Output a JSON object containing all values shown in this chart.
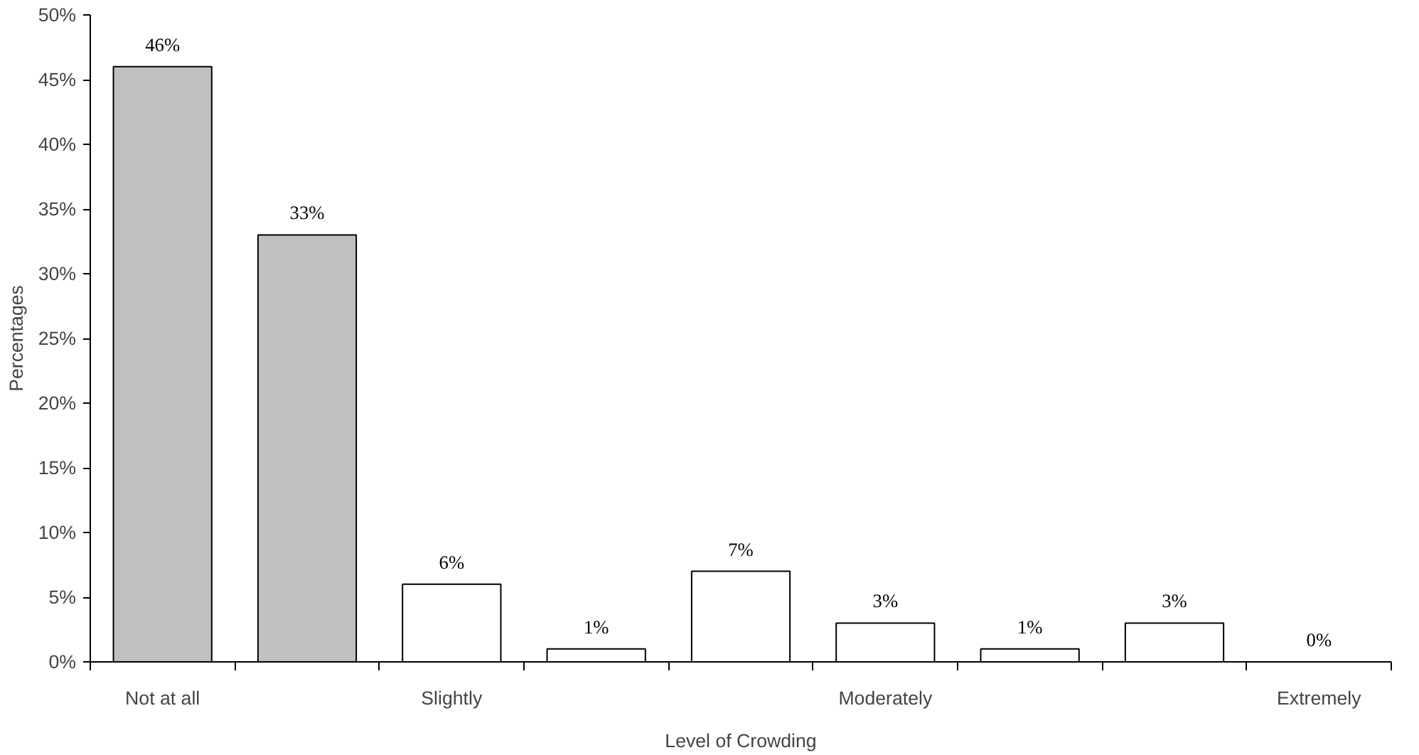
{
  "chart_data": {
    "type": "bar",
    "xlabel": "Level of Crowding",
    "ylabel": "Percentages",
    "categories": [
      "Not at all",
      null,
      "Slightly",
      null,
      null,
      "Moderately",
      null,
      null,
      "Extremely"
    ],
    "values": [
      46,
      33,
      6,
      1,
      7,
      3,
      1,
      3,
      0
    ],
    "value_labels": [
      "46%",
      "33%",
      "6%",
      "1%",
      "7%",
      "3%",
      "1%",
      "3%",
      "0%"
    ],
    "colors": [
      "#c0c0c0",
      "#c0c0c0",
      "#ffffff",
      "#ffffff",
      "#ffffff",
      "#ffffff",
      "#ffffff",
      "#ffffff",
      "#ffffff"
    ],
    "ylim": [
      0,
      50
    ],
    "yticks": [
      {
        "value": 0,
        "label": "0%"
      },
      {
        "value": 5,
        "label": "5%"
      },
      {
        "value": 10,
        "label": "10%"
      },
      {
        "value": 15,
        "label": "15%"
      },
      {
        "value": 20,
        "label": "20%"
      },
      {
        "value": 25,
        "label": "25%"
      },
      {
        "value": 30,
        "label": "30%"
      },
      {
        "value": 35,
        "label": "35%"
      },
      {
        "value": 40,
        "label": "40%"
      },
      {
        "value": 45,
        "label": "45%"
      },
      {
        "value": 50,
        "label": "50%"
      }
    ],
    "grid": false
  }
}
